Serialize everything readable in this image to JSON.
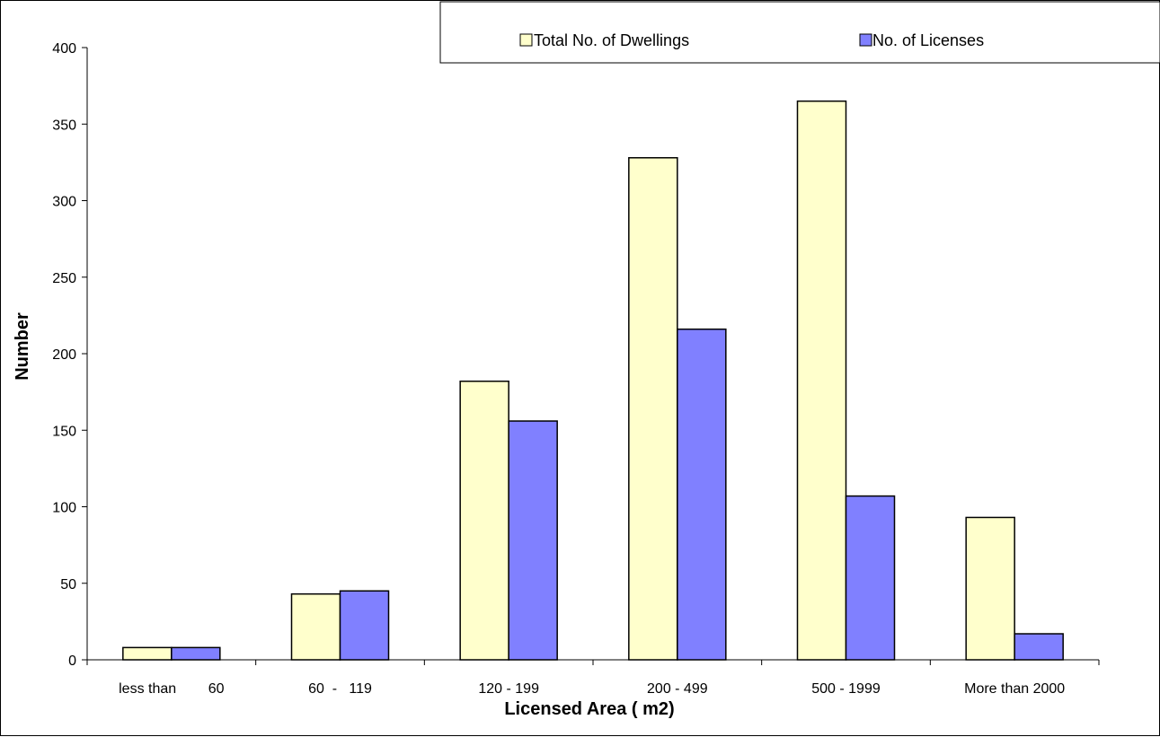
{
  "chart_data": {
    "type": "bar",
    "title": "",
    "xlabel": "Licensed Area  ( m2)",
    "ylabel": "Number",
    "ylim": [
      0,
      400
    ],
    "yticks": [
      0,
      50,
      100,
      150,
      200,
      250,
      300,
      350,
      400
    ],
    "categories": [
      "less than        60",
      "60  -   119",
      "120 - 199",
      "200 - 499",
      "500 - 1999",
      "More than 2000"
    ],
    "series": [
      {
        "name": "Total No. of  Dwellings",
        "color": "#FFFFCC",
        "values": [
          8,
          43,
          182,
          328,
          365,
          93
        ]
      },
      {
        "name": "No. of  Licenses",
        "color": "#8080FF",
        "values": [
          8,
          45,
          156,
          216,
          107,
          17
        ]
      }
    ],
    "grid": false,
    "legend_position": "top-right"
  }
}
